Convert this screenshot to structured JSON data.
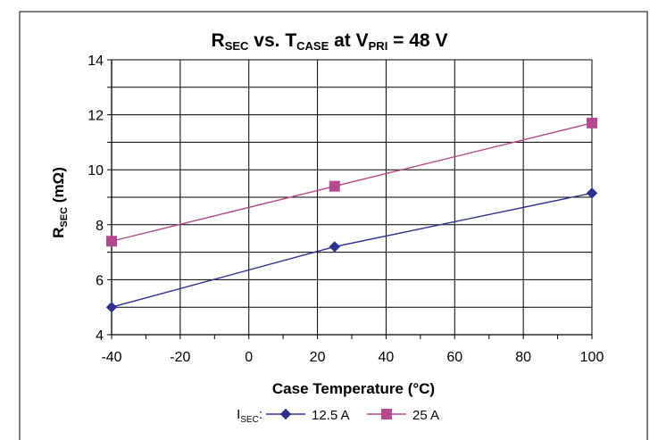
{
  "chart_data": {
    "type": "line",
    "title": {
      "r": "R",
      "r_sub": "SEC",
      "vs": " vs. ",
      "t": "T",
      "t_sub": "CASE",
      "at": " at ",
      "v": "V",
      "v_sub": "PRI",
      "tail": " = 48 V"
    },
    "xlabel": "Case Temperature (°C)",
    "ylabel": {
      "main": "R",
      "sub": "SEC",
      "unit": " (mΩ)"
    },
    "xlim": [
      -40,
      100
    ],
    "ylim": [
      4,
      14
    ],
    "xticks": [
      -40,
      -20,
      0,
      20,
      40,
      60,
      80,
      100
    ],
    "yticks": [
      4,
      6,
      8,
      10,
      12,
      14
    ],
    "grid": true,
    "legend": {
      "placement": "bottom",
      "prefix_main": "I",
      "prefix_sub": "SEC",
      "prefix_colon": ":"
    },
    "series": [
      {
        "name": "12.5 A",
        "color": "#2e3192",
        "marker": "diamond",
        "x": [
          -40,
          25,
          100
        ],
        "y": [
          5.0,
          7.2,
          9.15
        ]
      },
      {
        "name": "25 A",
        "color": "#b5488e",
        "marker": "square",
        "x": [
          -40,
          25,
          100
        ],
        "y": [
          7.4,
          9.4,
          11.7
        ]
      }
    ]
  }
}
